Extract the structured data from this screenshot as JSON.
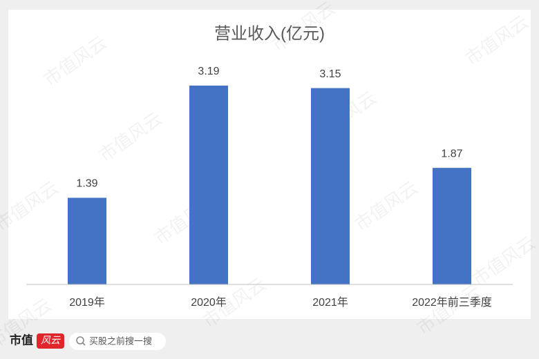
{
  "chart_data": {
    "type": "bar",
    "title": "营业收入(亿元)",
    "categories": [
      "2019年",
      "2020年",
      "2021年",
      "2022年前三季度"
    ],
    "values": [
      1.39,
      3.19,
      3.15,
      1.87
    ],
    "color": "#4472c4",
    "ylim": [
      0,
      3.5
    ],
    "grid": false
  },
  "watermark": "市值风云",
  "footer": {
    "logo_text": "市值",
    "logo_badge": "风云",
    "search_placeholder": "买股之前搜一搜"
  }
}
